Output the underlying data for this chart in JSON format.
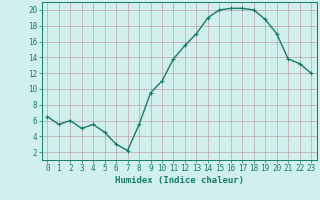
{
  "x": [
    0,
    1,
    2,
    3,
    4,
    5,
    6,
    7,
    8,
    9,
    10,
    11,
    12,
    13,
    14,
    15,
    16,
    17,
    18,
    19,
    20,
    21,
    22,
    23
  ],
  "y": [
    6.5,
    5.5,
    6.0,
    5.0,
    5.5,
    4.5,
    3.0,
    2.2,
    5.5,
    9.5,
    11.0,
    13.8,
    15.5,
    17.0,
    19.0,
    20.0,
    20.2,
    20.2,
    20.0,
    18.8,
    17.0,
    13.8,
    13.2,
    12.0
  ],
  "line_color": "#1a7a6a",
  "marker": "+",
  "marker_size": 3,
  "bg_color": "#cff0ec",
  "grid_color_major": "#c0a0a8",
  "grid_color_minor": "#dde8e6",
  "xlabel": "Humidex (Indice chaleur)",
  "xlim": [
    -0.5,
    23.5
  ],
  "ylim": [
    1.0,
    21.0
  ],
  "yticks": [
    2,
    4,
    6,
    8,
    10,
    12,
    14,
    16,
    18,
    20
  ],
  "xticks": [
    0,
    1,
    2,
    3,
    4,
    5,
    6,
    7,
    8,
    9,
    10,
    11,
    12,
    13,
    14,
    15,
    16,
    17,
    18,
    19,
    20,
    21,
    22,
    23
  ],
  "tick_color": "#1a7a6a",
  "label_fontsize": 6.5,
  "tick_fontsize": 5.5,
  "linewidth": 1.0
}
